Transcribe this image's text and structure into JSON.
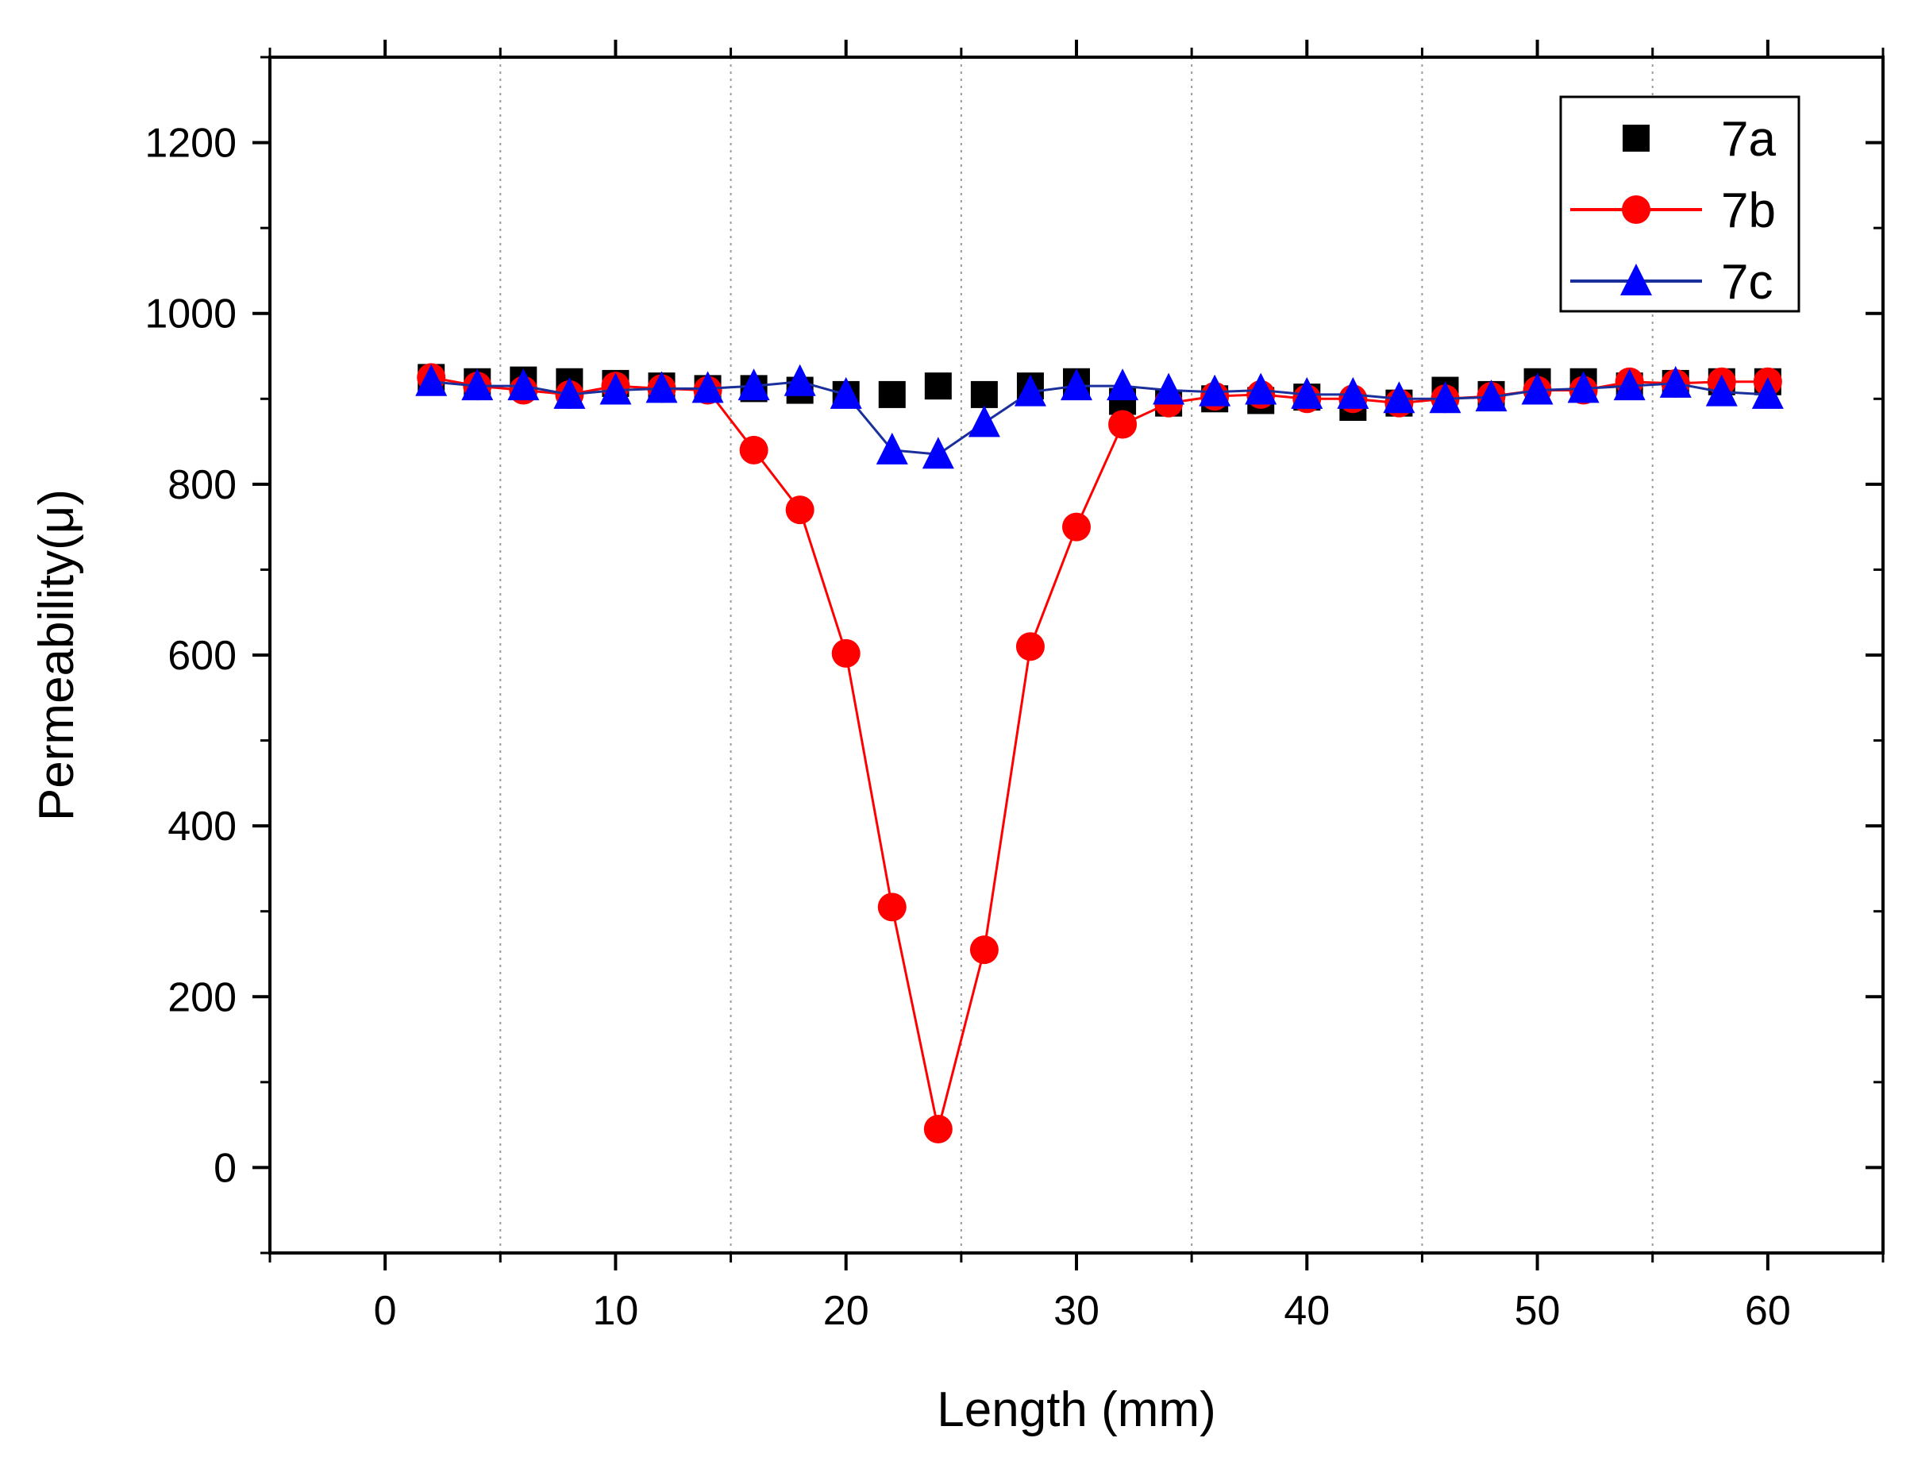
{
  "chart_data": {
    "type": "line",
    "title": "",
    "xlabel": "Length (mm)",
    "ylabel": "Permeability(μ)",
    "xlim": [
      -5,
      65
    ],
    "ylim": [
      -100,
      1300
    ],
    "xticks": [
      0,
      10,
      20,
      30,
      40,
      50,
      60
    ],
    "yticks": [
      0,
      200,
      400,
      600,
      800,
      1000,
      1200
    ],
    "x_tick_labels": [
      "0",
      "10",
      "20",
      "30",
      "40",
      "50",
      "60"
    ],
    "y_tick_labels": [
      "0",
      "200",
      "400",
      "600",
      "800",
      "1000",
      "1200"
    ],
    "grid": "vertical dotted lines at x = 5, 15, 25, 35, 45, 55",
    "legend_position": "top-right",
    "x": [
      2,
      4,
      6,
      8,
      10,
      12,
      14,
      16,
      18,
      20,
      22,
      24,
      26,
      28,
      30,
      32,
      34,
      36,
      38,
      40,
      42,
      44,
      46,
      48,
      50,
      52,
      54,
      56,
      58,
      60
    ],
    "series": [
      {
        "name": "7a",
        "marker": "square",
        "line": false,
        "color": "#000000",
        "values": [
          925,
          920,
          922,
          920,
          918,
          915,
          912,
          912,
          910,
          905,
          905,
          915,
          905,
          915,
          920,
          897,
          895,
          900,
          898,
          902,
          890,
          895,
          910,
          905,
          920,
          920,
          915,
          918,
          920,
          920
        ]
      },
      {
        "name": "7b",
        "marker": "circle",
        "line": true,
        "color": "#ff0000",
        "values": [
          925,
          915,
          910,
          905,
          915,
          912,
          910,
          840,
          770,
          602,
          305,
          45,
          255,
          610,
          750,
          870,
          895,
          903,
          905,
          900,
          900,
          895,
          900,
          903,
          910,
          910,
          920,
          918,
          920,
          920
        ]
      },
      {
        "name": "7c",
        "marker": "triangle",
        "line": true,
        "color": "#0000ff",
        "line_color": "#1a2f9c",
        "values": [
          920,
          915,
          915,
          905,
          910,
          912,
          912,
          915,
          920,
          905,
          840,
          835,
          872,
          908,
          915,
          915,
          910,
          908,
          910,
          905,
          905,
          900,
          900,
          902,
          910,
          912,
          915,
          918,
          908,
          905
        ]
      }
    ]
  }
}
